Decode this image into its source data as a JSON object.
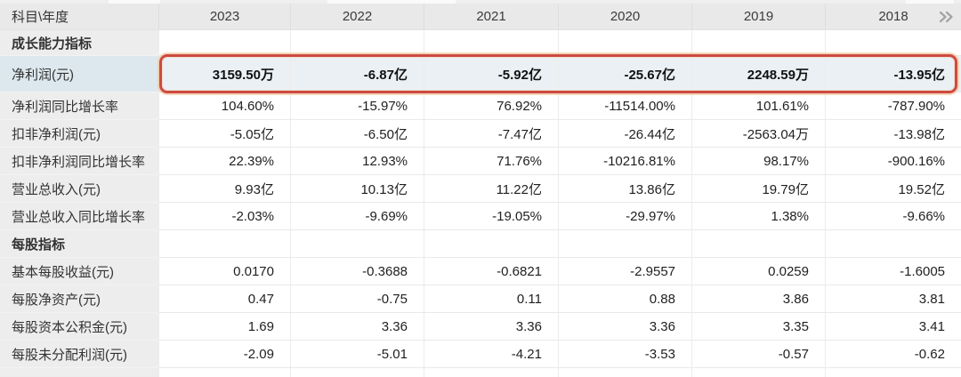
{
  "colors": {
    "highlight_border": "#cd4a41",
    "highlight_row_bg": "#eaf0f4",
    "highlight_label_bg": "#dde8ee",
    "header_bg": "#e9e9e9",
    "label_col_bg": "#ededed"
  },
  "header": {
    "corner_label": "科目\\年度",
    "years": [
      "2023",
      "2022",
      "2021",
      "2020",
      "2019",
      "2018"
    ],
    "more_icon": "double-chevron-right"
  },
  "table": {
    "rows": [
      {
        "type": "section",
        "label": "成长能力指标",
        "values": [
          "",
          "",
          "",
          "",
          "",
          ""
        ]
      },
      {
        "type": "highlight",
        "label": "净利润(元)",
        "values": [
          "3159.50万",
          "-6.87亿",
          "-5.92亿",
          "-25.67亿",
          "2248.59万",
          "-13.95亿"
        ]
      },
      {
        "type": "data",
        "label": "净利润同比增长率",
        "values": [
          "104.60%",
          "-15.97%",
          "76.92%",
          "-11514.00%",
          "101.61%",
          "-787.90%"
        ]
      },
      {
        "type": "data",
        "label": "扣非净利润(元)",
        "values": [
          "-5.05亿",
          "-6.50亿",
          "-7.47亿",
          "-26.44亿",
          "-2563.04万",
          "-13.98亿"
        ]
      },
      {
        "type": "data",
        "label": "扣非净利润同比增长率",
        "values": [
          "22.39%",
          "12.93%",
          "71.76%",
          "-10216.81%",
          "98.17%",
          "-900.16%"
        ]
      },
      {
        "type": "data",
        "label": "营业总收入(元)",
        "values": [
          "9.93亿",
          "10.13亿",
          "11.22亿",
          "13.86亿",
          "19.79亿",
          "19.52亿"
        ]
      },
      {
        "type": "data",
        "label": "营业总收入同比增长率",
        "values": [
          "-2.03%",
          "-9.69%",
          "-19.05%",
          "-29.97%",
          "1.38%",
          "-9.66%"
        ]
      },
      {
        "type": "section",
        "label": "每股指标",
        "values": [
          "",
          "",
          "",
          "",
          "",
          ""
        ]
      },
      {
        "type": "data",
        "label": "基本每股收益(元)",
        "values": [
          "0.0170",
          "-0.3688",
          "-0.6821",
          "-2.9557",
          "0.0259",
          "-1.6005"
        ]
      },
      {
        "type": "data",
        "label": "每股净资产(元)",
        "values": [
          "0.47",
          "-0.75",
          "0.11",
          "0.88",
          "3.86",
          "3.81"
        ]
      },
      {
        "type": "data",
        "label": "每股资本公积金(元)",
        "values": [
          "1.69",
          "3.36",
          "3.36",
          "3.36",
          "3.35",
          "3.41"
        ]
      },
      {
        "type": "data",
        "label": "每股未分配利润(元)",
        "values": [
          "-2.09",
          "-5.01",
          "-4.21",
          "-3.53",
          "-0.57",
          "-0.62"
        ]
      }
    ]
  }
}
